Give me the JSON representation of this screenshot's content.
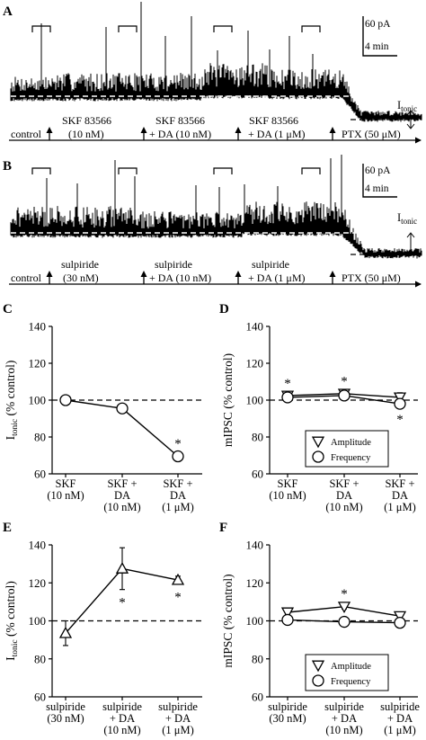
{
  "figure": {
    "panels": {
      "A": {
        "letter": "A"
      },
      "B": {
        "letter": "B"
      },
      "C": {
        "letter": "C"
      },
      "D": {
        "letter": "D"
      },
      "E": {
        "letter": "E"
      },
      "F": {
        "letter": "F"
      }
    }
  },
  "chart_data": [
    {
      "panel": "A",
      "type": "trace",
      "scale_bar": {
        "amplitude": "60 pA",
        "time": "4 min"
      },
      "current_label": {
        "main": "I",
        "sub": "tonic"
      },
      "timeline": [
        {
          "line1": "control",
          "line2": ""
        },
        {
          "line1": "SKF 83566",
          "line2": "(10 nM)"
        },
        {
          "line1": "SKF 83566",
          "line2": "+ DA (10 nM)"
        },
        {
          "line1": "SKF 83566",
          "line2": "+ DA (1 μM)"
        },
        {
          "line1": "PTX (50 μM)",
          "line2": ""
        }
      ]
    },
    {
      "panel": "B",
      "type": "trace",
      "scale_bar": {
        "amplitude": "60 pA",
        "time": "4 min"
      },
      "current_label": {
        "main": "I",
        "sub": "tonic"
      },
      "timeline": [
        {
          "line1": "control",
          "line2": ""
        },
        {
          "line1": "sulpiride",
          "line2": "(30 nM)"
        },
        {
          "line1": "sulpiride",
          "line2": "+ DA (10 nM)"
        },
        {
          "line1": "sulpiride",
          "line2": "+ DA (1 μM)"
        },
        {
          "line1": "PTX (50 μM)",
          "line2": ""
        }
      ]
    },
    {
      "panel": "C",
      "type": "line",
      "ylabel": {
        "main": "I",
        "sub": "tonic",
        "rest": " (% control)"
      },
      "ylim": [
        60,
        140
      ],
      "yticks": [
        "60",
        "80",
        "100",
        "120",
        "140"
      ],
      "reference": 100,
      "categories": [
        [
          "SKF",
          "(10 nM)"
        ],
        [
          "SKF +",
          "DA",
          "(10 nM)"
        ],
        [
          "SKF +",
          "DA",
          "(1 μM)"
        ]
      ],
      "series": [
        {
          "marker": "circle",
          "values": [
            100,
            95.5,
            69.5
          ],
          "errors": [
            0,
            0.8,
            1.2
          ]
        }
      ],
      "significance": [
        {
          "index": 2,
          "label": "*",
          "position": "above"
        }
      ]
    },
    {
      "panel": "D",
      "type": "line",
      "ylabel": {
        "main": "mIPSC (% control)"
      },
      "ylim": [
        60,
        140
      ],
      "yticks": [
        "60",
        "80",
        "100",
        "120",
        "140"
      ],
      "reference": 100,
      "categories": [
        [
          "SKF",
          "(10 nM)"
        ],
        [
          "SKF +",
          "DA",
          "(10 nM)"
        ],
        [
          "SKF +",
          "DA",
          "(1 μM)"
        ]
      ],
      "series": [
        {
          "name": "Amplitude",
          "marker": "triangle-down",
          "values": [
            102.5,
            103.5,
            101.5
          ],
          "errors": [
            1.0,
            1.2,
            2.5
          ]
        },
        {
          "name": "Frequency",
          "marker": "circle",
          "values": [
            101.5,
            102.5,
            98.0
          ],
          "errors": [
            1.0,
            1.0,
            1.5
          ]
        }
      ],
      "significance": [
        {
          "index": 0,
          "label": "*",
          "position": "above"
        },
        {
          "index": 1,
          "label": "*",
          "position": "above"
        },
        {
          "index": 2,
          "label": "*",
          "position": "below"
        }
      ],
      "legend_position": "bottom-center"
    },
    {
      "panel": "E",
      "type": "line",
      "ylabel": {
        "main": "I",
        "sub": "tonic",
        "rest": " (% control)"
      },
      "ylim": [
        60,
        140
      ],
      "yticks": [
        "60",
        "80",
        "100",
        "120",
        "140"
      ],
      "reference": 100,
      "categories": [
        [
          "sulpiride",
          "(30 nM)"
        ],
        [
          "sulpiride",
          "+ DA",
          "(10 nM)"
        ],
        [
          "sulpiride",
          "+ DA",
          "(1 μM)"
        ]
      ],
      "series": [
        {
          "marker": "triangle-up",
          "values": [
            93.5,
            127.5,
            121.5
          ],
          "errors": [
            6.5,
            11,
            2
          ]
        }
      ],
      "significance": [
        {
          "index": 1,
          "label": "*",
          "position": "below"
        },
        {
          "index": 2,
          "label": "*",
          "position": "below"
        }
      ]
    },
    {
      "panel": "F",
      "type": "line",
      "ylabel": {
        "main": "mIPSC (% control)"
      },
      "ylim": [
        60,
        140
      ],
      "yticks": [
        "60",
        "80",
        "100",
        "120",
        "140"
      ],
      "reference": 100,
      "categories": [
        [
          "sulpiride",
          "(30 nM)"
        ],
        [
          "sulpiride",
          "+ DA",
          "(10 nM)"
        ],
        [
          "sulpiride",
          "+ DA",
          "(1 μM)"
        ]
      ],
      "series": [
        {
          "name": "Amplitude",
          "marker": "triangle-down",
          "values": [
            104.5,
            107.5,
            102.5
          ],
          "errors": [
            1.0,
            1.2,
            1.0
          ]
        },
        {
          "name": "Frequency",
          "marker": "circle",
          "values": [
            100.5,
            99.5,
            99.0
          ],
          "errors": [
            0.8,
            0.8,
            0.8
          ]
        }
      ],
      "significance": [
        {
          "index": 1,
          "label": "*",
          "position": "above"
        }
      ],
      "legend_position": "bottom-center"
    }
  ]
}
